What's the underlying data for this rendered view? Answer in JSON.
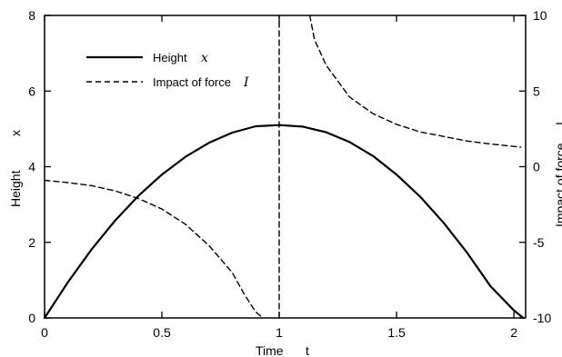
{
  "chart_data": {
    "type": "line",
    "xlabel": "Time",
    "xlabel_symbol": "t",
    "ylabel": "Height",
    "ylabel_symbol": "x",
    "y2label": "Impact of force",
    "y2label_symbol": "I",
    "xlim": [
      0,
      2.05
    ],
    "ylim": [
      0,
      8
    ],
    "y2lim": [
      -10,
      10
    ],
    "x_ticks": [
      "0",
      "0.5",
      "1",
      "1.5",
      "2"
    ],
    "y_ticks": [
      "0",
      "2",
      "4",
      "6",
      "8"
    ],
    "y2_ticks": [
      "-10",
      "-5",
      "0",
      "5",
      "10"
    ],
    "x_tick_values": [
      0,
      0.5,
      1,
      1.5,
      2
    ],
    "y_tick_values": [
      0,
      2,
      4,
      6,
      8
    ],
    "y2_tick_values": [
      -10,
      -5,
      0,
      5,
      10
    ],
    "grid": false,
    "legend_position": "top-left",
    "series": [
      {
        "name": "Height",
        "symbol": "x",
        "axis": "left",
        "style": "solid",
        "x": [
          0,
          0.1,
          0.2,
          0.3,
          0.4,
          0.5,
          0.6,
          0.7,
          0.8,
          0.9,
          1.0,
          1.1,
          1.2,
          1.3,
          1.4,
          1.5,
          1.6,
          1.7,
          1.8,
          1.9,
          2.0,
          2.04
        ],
        "y": [
          0,
          0.95,
          1.81,
          2.57,
          3.23,
          3.79,
          4.26,
          4.63,
          4.9,
          5.07,
          5.1,
          5.06,
          4.91,
          4.65,
          4.28,
          3.79,
          3.21,
          2.52,
          1.73,
          0.84,
          0.2,
          0
        ]
      },
      {
        "name": "Impact of force",
        "symbol": "I",
        "axis": "right",
        "style": "dashed",
        "x": [
          0,
          0.1,
          0.2,
          0.3,
          0.4,
          0.5,
          0.6,
          0.7,
          0.8,
          0.85,
          0.9,
          0.93
        ],
        "y": [
          -0.9,
          -1.05,
          -1.25,
          -1.6,
          -2.1,
          -2.8,
          -3.8,
          -5.2,
          -7.0,
          -8.4,
          -9.6,
          -10
        ]
      },
      {
        "name": "",
        "axis": "right",
        "style": "dashed",
        "x": [
          1.13,
          1.15,
          1.2,
          1.3,
          1.4,
          1.5,
          1.6,
          1.7,
          1.8,
          1.9,
          2.03
        ],
        "y": [
          10,
          8.4,
          6.7,
          4.6,
          3.5,
          2.8,
          2.3,
          2.0,
          1.7,
          1.5,
          1.3
        ]
      },
      {
        "name": "",
        "axis": "right",
        "style": "dashed",
        "x": [
          1.0,
          1.0
        ],
        "y": [
          -10,
          10
        ]
      }
    ]
  }
}
